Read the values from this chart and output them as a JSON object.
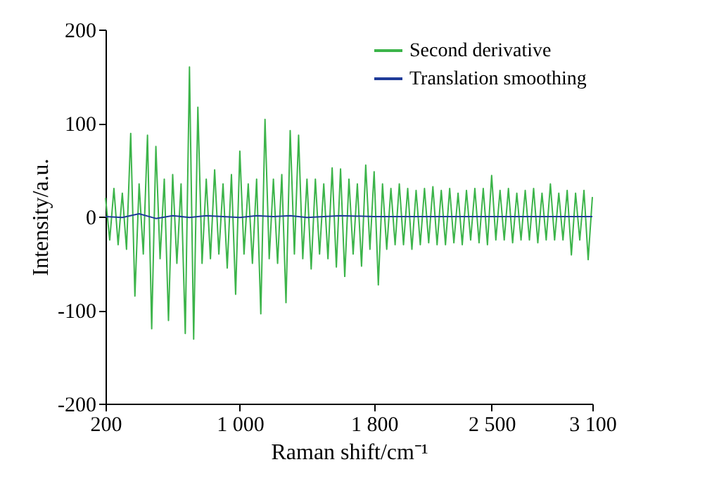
{
  "chart_data": {
    "type": "line",
    "xlabel": "Raman shift/cm⁻¹",
    "ylabel": "Intensity/a.u.",
    "xlim": [
      200,
      3100
    ],
    "xticks": [
      200,
      {
        "value": 1000,
        "label": "1 000"
      },
      {
        "value": 1800,
        "label": "1 800"
      },
      {
        "value": 2500,
        "label": "2 500"
      },
      {
        "value": 3100,
        "label": "3 100"
      }
    ],
    "ylim": [
      -200,
      200
    ],
    "yticks": [
      -200,
      -100,
      0,
      100,
      200
    ],
    "grid": false,
    "legend": "top right",
    "line_style": "solid",
    "marker": "none",
    "series": [
      {
        "name": "Second derivative",
        "color": "#3cb44a",
        "x": [
          200,
          225,
          250,
          275,
          300,
          325,
          350,
          375,
          400,
          425,
          450,
          475,
          500,
          525,
          550,
          575,
          600,
          625,
          650,
          675,
          700,
          725,
          750,
          775,
          800,
          825,
          850,
          875,
          900,
          925,
          950,
          975,
          1000,
          1025,
          1050,
          1075,
          1100,
          1125,
          1150,
          1175,
          1200,
          1225,
          1250,
          1275,
          1300,
          1325,
          1350,
          1375,
          1400,
          1425,
          1450,
          1475,
          1500,
          1525,
          1550,
          1575,
          1600,
          1625,
          1650,
          1675,
          1700,
          1725,
          1750,
          1775,
          1800,
          1825,
          1850,
          1875,
          1900,
          1925,
          1950,
          1975,
          2000,
          2025,
          2050,
          2075,
          2100,
          2125,
          2150,
          2175,
          2200,
          2225,
          2250,
          2275,
          2300,
          2325,
          2350,
          2375,
          2400,
          2425,
          2450,
          2475,
          2500,
          2525,
          2550,
          2575,
          2600,
          2625,
          2650,
          2675,
          2700,
          2725,
          2750,
          2775,
          2800,
          2825,
          2850,
          2875,
          2900,
          2925,
          2950,
          2975,
          3000,
          3025,
          3050,
          3075,
          3100
        ],
        "values": [
          20,
          -25,
          30,
          -30,
          25,
          -35,
          89,
          -85,
          35,
          -40,
          87,
          -120,
          75,
          -45,
          40,
          -111,
          45,
          -50,
          35,
          -125,
          160,
          -131,
          117,
          -50,
          40,
          -45,
          50,
          -40,
          35,
          -55,
          45,
          -83,
          70,
          -40,
          35,
          -50,
          40,
          -104,
          104,
          -45,
          40,
          -50,
          45,
          -92,
          92,
          -40,
          87,
          -45,
          40,
          -56,
          40,
          -40,
          35,
          -45,
          52,
          -54,
          51,
          -64,
          40,
          -40,
          35,
          -53,
          55,
          -35,
          48,
          -73,
          35,
          -35,
          30,
          -30,
          35,
          -30,
          30,
          -35,
          28,
          -30,
          30,
          -28,
          32,
          -30,
          28,
          -30,
          30,
          -28,
          25,
          -30,
          28,
          -25,
          30,
          -28,
          30,
          -30,
          44,
          -25,
          28,
          -25,
          30,
          -28,
          25,
          -25,
          28,
          -25,
          30,
          -28,
          25,
          -25,
          35,
          -25,
          25,
          -25,
          28,
          -41,
          25,
          -25,
          28,
          -46,
          21
        ]
      },
      {
        "name": "Translation smoothing",
        "color": "#1f3b99",
        "x": [
          200,
          300,
          400,
          500,
          600,
          700,
          800,
          900,
          1000,
          1100,
          1200,
          1300,
          1400,
          1500,
          1600,
          1800,
          2000,
          2200,
          2400,
          2600,
          2800,
          3000,
          3100
        ],
        "values": [
          0,
          -1,
          3,
          -2,
          1,
          -1,
          1,
          0,
          -1,
          1,
          0,
          1,
          -1,
          0,
          1,
          0,
          0,
          0,
          0,
          0,
          0,
          0,
          0
        ]
      }
    ]
  }
}
